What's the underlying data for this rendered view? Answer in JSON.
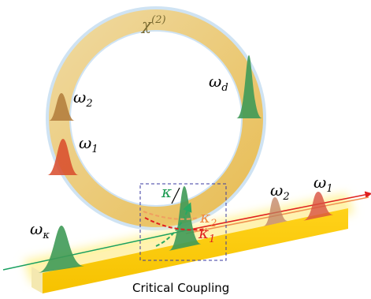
{
  "ring_label": {
    "text": "χ",
    "sup": "(2)"
  },
  "labels": [
    {
      "text": "ω",
      "sub": "d"
    },
    {
      "text": "ω",
      "sub": "2"
    },
    {
      "text": "ω",
      "sub": "1"
    },
    {
      "text": "ω",
      "sub": "κ"
    },
    {
      "text": "κ"
    },
    {
      "text": "κ",
      "sub": "2"
    },
    {
      "text": "κ",
      "sub": "1"
    },
    {
      "text": "ω",
      "sub": "2"
    },
    {
      "text": "ω",
      "sub": "1"
    }
  ],
  "caption": "Critical Coupling"
}
